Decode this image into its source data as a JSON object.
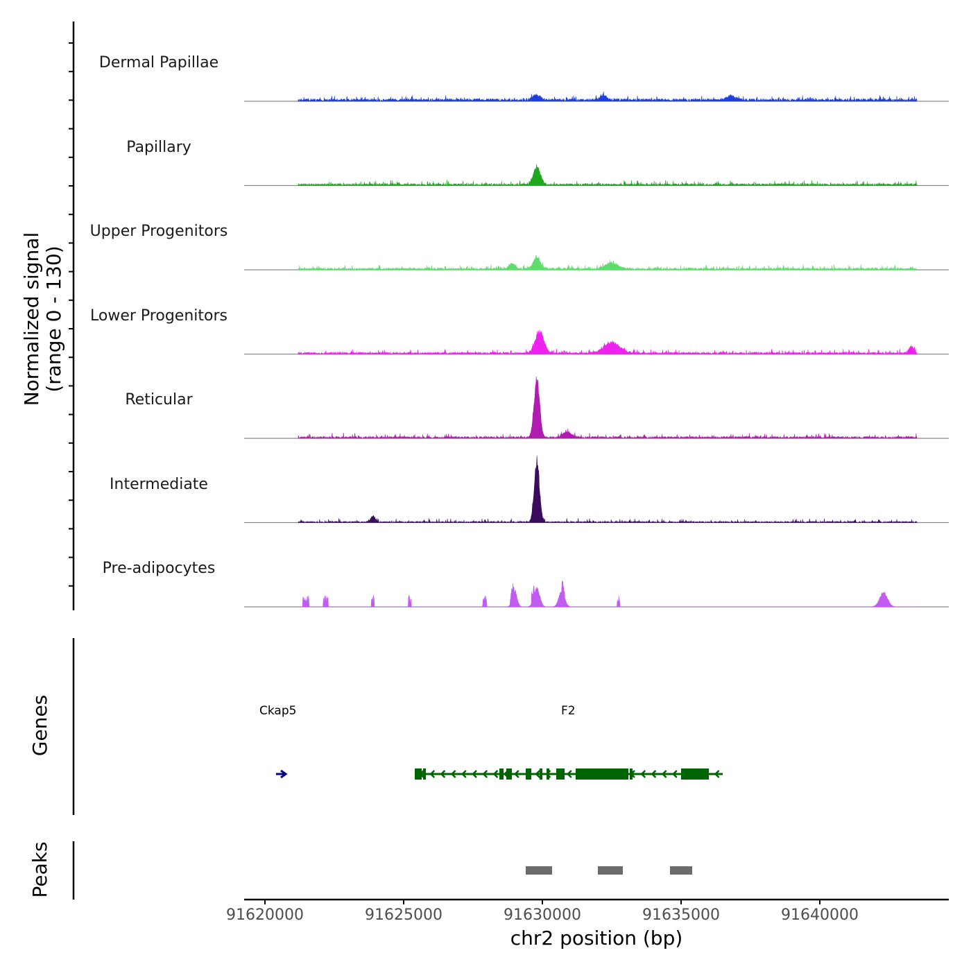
{
  "chart_data": {
    "type": "area",
    "chromosome": "chr2",
    "xlabel": "chr2 position (bp)",
    "ylabel": "Normalized signal",
    "ylabel_range": "(range 0 - 130)",
    "ylim": [
      0,
      130
    ],
    "xlim": [
      91620000,
      91645000
    ],
    "x_ticks": [
      91620000,
      91625000,
      91630000,
      91635000,
      91640000
    ],
    "x_tick_labels": [
      "91620000",
      "91625000",
      "91630000",
      "91635000",
      "91640000"
    ],
    "signal_start": 91621200,
    "signal_end": 91643500,
    "series": [
      {
        "name": "Dermal Papillae",
        "color": "#1f3fd6",
        "baseline": 4,
        "noise": 6,
        "peak": 8,
        "peaks": [
          [
            91629800,
            8,
            200
          ],
          [
            91632200,
            9,
            150
          ],
          [
            91636800,
            8,
            200
          ]
        ]
      },
      {
        "name": "Papillary",
        "color": "#1ea81e",
        "baseline": 3,
        "noise": 6,
        "peak": 30,
        "peaks": [
          [
            91629800,
            30,
            180
          ]
        ]
      },
      {
        "name": "Upper Progenitors",
        "color": "#5fdc6c",
        "baseline": 3,
        "noise": 6,
        "peak": 20,
        "peaks": [
          [
            91629800,
            20,
            180
          ],
          [
            91632500,
            10,
            300
          ],
          [
            91628900,
            9,
            150
          ]
        ]
      },
      {
        "name": "Lower Progenitors",
        "color": "#ee22ee",
        "baseline": 3,
        "noise": 6,
        "peak": 36,
        "peaks": [
          [
            91629900,
            36,
            220
          ],
          [
            91632500,
            18,
            400
          ],
          [
            91643300,
            12,
            120
          ]
        ]
      },
      {
        "name": "Reticular",
        "color": "#b01cb0",
        "baseline": 3,
        "noise": 6,
        "peak": 100,
        "peaks": [
          [
            91629800,
            100,
            140
          ],
          [
            91630900,
            10,
            200
          ]
        ]
      },
      {
        "name": "Intermediate",
        "color": "#3b0c5c",
        "baseline": 2,
        "noise": 5,
        "peak": 104,
        "peaks": [
          [
            91629800,
            104,
            130
          ],
          [
            91623900,
            10,
            120
          ]
        ]
      },
      {
        "name": "Pre-adipocytes",
        "color": "#c25cf0",
        "baseline": 0,
        "noise": 14,
        "peak": 32,
        "peaks": [
          [
            91629800,
            32,
            150
          ],
          [
            91629000,
            28,
            120
          ],
          [
            91630700,
            26,
            150
          ],
          [
            91642300,
            24,
            200
          ]
        ]
      }
    ],
    "genes": [
      {
        "name": "Ckap5",
        "start": 91620400,
        "end": 91620750,
        "strand": "+",
        "color": "#00008b"
      },
      {
        "name": "F2",
        "start": 91625400,
        "end": 91636500,
        "strand": "-",
        "color": "#006400",
        "exons": [
          [
            91625400,
            91625650
          ],
          [
            91625700,
            91625800
          ],
          [
            91628450,
            91628600
          ],
          [
            91628700,
            91628900
          ],
          [
            91629400,
            91629600
          ],
          [
            91629900,
            91630000
          ],
          [
            91630150,
            91630250
          ],
          [
            91630500,
            91630800
          ],
          [
            91631200,
            91633100
          ],
          [
            91633150,
            91633250
          ],
          [
            91635000,
            91636000
          ]
        ]
      }
    ],
    "peaks": [
      [
        91629400,
        91630350
      ],
      [
        91632000,
        91632900
      ],
      [
        91634600,
        91635400
      ]
    ]
  },
  "labels": {
    "genes_axis": "Genes",
    "peaks_axis": "Peaks"
  }
}
